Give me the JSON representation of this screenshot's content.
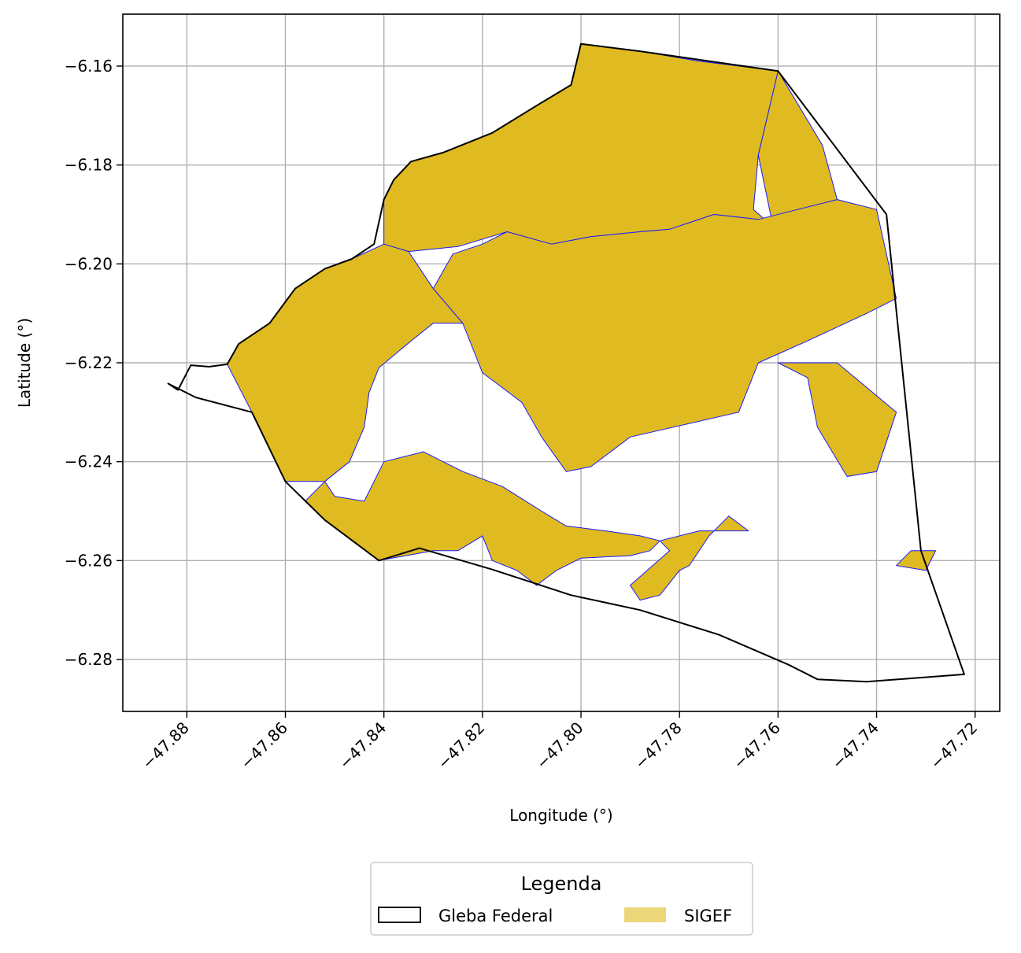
{
  "chart_data": {
    "type": "map",
    "xlabel": "Longitude (°)",
    "ylabel": "Latitude (°)",
    "xlim": [
      -47.893,
      -47.715
    ],
    "ylim": [
      -6.2905,
      -6.1495
    ],
    "xticks": [
      -47.88,
      -47.86,
      -47.84,
      -47.82,
      -47.8,
      -47.78,
      -47.76,
      -47.74,
      -47.72
    ],
    "yticks": [
      -6.16,
      -6.18,
      -6.2,
      -6.22,
      -6.24,
      -6.26,
      -6.28
    ],
    "xtick_labels": [
      "−47.88",
      "−47.86",
      "−47.84",
      "−47.82",
      "−47.80",
      "−47.78",
      "−47.76",
      "−47.74",
      "−47.72"
    ],
    "ytick_labels": [
      "−6.16",
      "−6.18",
      "−6.20",
      "−6.22",
      "−6.24",
      "−6.26",
      "−6.28"
    ],
    "grid": true,
    "legend": {
      "title": "Legenda",
      "placement": "bottom-center, below plot",
      "entries": [
        {
          "name": "Gleba Federal",
          "style": "outline",
          "edge_color": "#000000"
        },
        {
          "name": "SIGEF",
          "style": "fill",
          "face_color": "#dfbb21",
          "edge_color": "#1a1aff"
        }
      ]
    },
    "layers": [
      {
        "name": "Gleba Federal",
        "type": "polygon-outline",
        "color": "#000000",
        "coordinates": [
          [
            -47.8838,
            -6.2242
          ],
          [
            -47.8818,
            -6.2255
          ],
          [
            -47.8792,
            -6.2205
          ],
          [
            -47.8755,
            -6.2208
          ],
          [
            -47.8718,
            -6.2203
          ],
          [
            -47.8695,
            -6.2162
          ],
          [
            -47.8632,
            -6.212
          ],
          [
            -47.858,
            -6.205
          ],
          [
            -47.852,
            -6.201
          ],
          [
            -47.8465,
            -6.199
          ],
          [
            -47.842,
            -6.196
          ],
          [
            -47.84,
            -6.187
          ],
          [
            -47.838,
            -6.183
          ],
          [
            -47.8345,
            -6.1793
          ],
          [
            -47.828,
            -6.1775
          ],
          [
            -47.818,
            -6.1735
          ],
          [
            -47.809,
            -6.168
          ],
          [
            -47.802,
            -6.1638
          ],
          [
            -47.8,
            -6.1555
          ],
          [
            -47.788,
            -6.157
          ],
          [
            -47.76,
            -6.161
          ],
          [
            -47.738,
            -6.19
          ],
          [
            -47.731,
            -6.258
          ],
          [
            -47.7222,
            -6.283
          ],
          [
            -47.742,
            -6.2845
          ],
          [
            -47.752,
            -6.284
          ],
          [
            -47.758,
            -6.281
          ],
          [
            -47.772,
            -6.275
          ],
          [
            -47.788,
            -6.27
          ],
          [
            -47.802,
            -6.267
          ],
          [
            -47.818,
            -6.2618
          ],
          [
            -47.8328,
            -6.2575
          ],
          [
            -47.841,
            -6.26
          ],
          [
            -47.852,
            -6.2518
          ],
          [
            -47.86,
            -6.244
          ],
          [
            -47.8668,
            -6.23
          ],
          [
            -47.8782,
            -6.227
          ],
          [
            -47.8838,
            -6.2242
          ]
        ]
      },
      {
        "name": "SIGEF",
        "type": "polygon-fill",
        "face_color": "#dfbb21",
        "edge_color": "#1a1aff",
        "parcels": [
          [
            [
              -47.8,
              -6.1555
            ],
            [
              -47.796,
              -6.156
            ],
            [
              -47.788,
              -6.157
            ],
            [
              -47.776,
              -6.159
            ],
            [
              -47.76,
              -6.161
            ],
            [
              -47.764,
              -6.178
            ],
            [
              -47.765,
              -6.189
            ],
            [
              -47.761,
              -6.1925
            ],
            [
              -47.764,
              -6.191
            ],
            [
              -47.773,
              -6.19
            ],
            [
              -47.782,
              -6.193
            ],
            [
              -47.788,
              -6.1935
            ],
            [
              -47.798,
              -6.1945
            ],
            [
              -47.806,
              -6.196
            ],
            [
              -47.815,
              -6.1935
            ],
            [
              -47.825,
              -6.1965
            ],
            [
              -47.835,
              -6.1975
            ],
            [
              -47.84,
              -6.196
            ],
            [
              -47.84,
              -6.187
            ],
            [
              -47.838,
              -6.183
            ],
            [
              -47.8345,
              -6.1793
            ],
            [
              -47.828,
              -6.1775
            ],
            [
              -47.818,
              -6.1735
            ],
            [
              -47.809,
              -6.168
            ],
            [
              -47.802,
              -6.1638
            ],
            [
              -47.8,
              -6.1555
            ]
          ],
          [
            [
              -47.76,
              -6.161
            ],
            [
              -47.751,
              -6.176
            ],
            [
              -47.748,
              -6.187
            ],
            [
              -47.756,
              -6.1905
            ],
            [
              -47.761,
              -6.1925
            ],
            [
              -47.764,
              -6.178
            ],
            [
              -47.76,
              -6.161
            ]
          ],
          [
            [
              -47.815,
              -6.1935
            ],
            [
              -47.806,
              -6.196
            ],
            [
              -47.798,
              -6.1945
            ],
            [
              -47.788,
              -6.1935
            ],
            [
              -47.782,
              -6.193
            ],
            [
              -47.773,
              -6.19
            ],
            [
              -47.764,
              -6.191
            ],
            [
              -47.748,
              -6.187
            ],
            [
              -47.74,
              -6.189
            ],
            [
              -47.736,
              -6.207
            ],
            [
              -47.742,
              -6.21
            ],
            [
              -47.755,
              -6.216
            ],
            [
              -47.764,
              -6.22
            ],
            [
              -47.768,
              -6.23
            ],
            [
              -47.79,
              -6.235
            ],
            [
              -47.798,
              -6.241
            ],
            [
              -47.803,
              -6.242
            ],
            [
              -47.808,
              -6.235
            ],
            [
              -47.812,
              -6.228
            ],
            [
              -47.82,
              -6.222
            ],
            [
              -47.824,
              -6.212
            ],
            [
              -47.83,
              -6.205
            ],
            [
              -47.826,
              -6.198
            ],
            [
              -47.82,
              -6.196
            ],
            [
              -47.815,
              -6.1935
            ]
          ],
          [
            [
              -47.84,
              -6.196
            ],
            [
              -47.8465,
              -6.199
            ],
            [
              -47.852,
              -6.201
            ],
            [
              -47.858,
              -6.205
            ],
            [
              -47.8632,
              -6.212
            ],
            [
              -47.8695,
              -6.2162
            ],
            [
              -47.8718,
              -6.2203
            ],
            [
              -47.8668,
              -6.23
            ],
            [
              -47.86,
              -6.244
            ],
            [
              -47.852,
              -6.244
            ],
            [
              -47.847,
              -6.24
            ],
            [
              -47.844,
              -6.233
            ],
            [
              -47.843,
              -6.226
            ],
            [
              -47.841,
              -6.221
            ],
            [
              -47.835,
              -6.216
            ],
            [
              -47.83,
              -6.212
            ],
            [
              -47.824,
              -6.212
            ],
            [
              -47.83,
              -6.205
            ],
            [
              -47.835,
              -6.1975
            ],
            [
              -47.84,
              -6.196
            ]
          ],
          [
            [
              -47.852,
              -6.244
            ],
            [
              -47.85,
              -6.247
            ],
            [
              -47.844,
              -6.248
            ],
            [
              -47.84,
              -6.24
            ],
            [
              -47.832,
              -6.238
            ],
            [
              -47.824,
              -6.242
            ],
            [
              -47.816,
              -6.245
            ],
            [
              -47.808,
              -6.25
            ],
            [
              -47.803,
              -6.253
            ],
            [
              -47.795,
              -6.254
            ],
            [
              -47.788,
              -6.255
            ],
            [
              -47.784,
              -6.256
            ],
            [
              -47.786,
              -6.258
            ],
            [
              -47.79,
              -6.259
            ],
            [
              -47.8,
              -6.2595
            ],
            [
              -47.805,
              -6.262
            ],
            [
              -47.809,
              -6.265
            ],
            [
              -47.813,
              -6.262
            ],
            [
              -47.818,
              -6.26
            ],
            [
              -47.82,
              -6.255
            ],
            [
              -47.825,
              -6.258
            ],
            [
              -47.83,
              -6.258
            ],
            [
              -47.841,
              -6.26
            ],
            [
              -47.852,
              -6.2518
            ],
            [
              -47.856,
              -6.248
            ],
            [
              -47.852,
              -6.244
            ]
          ],
          [
            [
              -47.784,
              -6.256
            ],
            [
              -47.782,
              -6.258
            ],
            [
              -47.79,
              -6.265
            ],
            [
              -47.788,
              -6.268
            ],
            [
              -47.784,
              -6.267
            ],
            [
              -47.78,
              -6.262
            ],
            [
              -47.778,
              -6.261
            ],
            [
              -47.774,
              -6.255
            ],
            [
              -47.77,
              -6.251
            ],
            [
              -47.766,
              -6.254
            ],
            [
              -47.776,
              -6.254
            ],
            [
              -47.784,
              -6.256
            ]
          ],
          [
            [
              -47.76,
              -6.22
            ],
            [
              -47.754,
              -6.223
            ],
            [
              -47.752,
              -6.233
            ],
            [
              -47.746,
              -6.243
            ],
            [
              -47.74,
              -6.242
            ],
            [
              -47.736,
              -6.23
            ],
            [
              -47.748,
              -6.22
            ],
            [
              -47.76,
              -6.22
            ]
          ],
          [
            [
              -47.733,
              -6.258
            ],
            [
              -47.728,
              -6.258
            ],
            [
              -47.73,
              -6.262
            ],
            [
              -47.736,
              -6.261
            ],
            [
              -47.733,
              -6.258
            ]
          ]
        ]
      }
    ]
  }
}
